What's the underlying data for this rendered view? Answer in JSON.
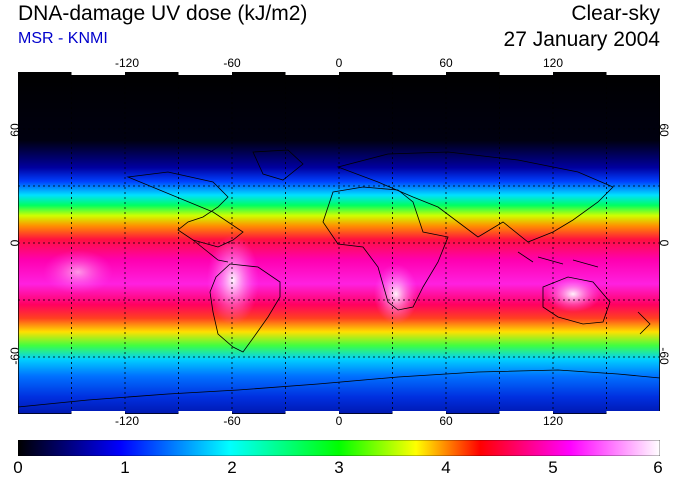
{
  "header": {
    "title": "DNA-damage UV dose (kJ/m2)",
    "subtitle": "MSR - KNMI",
    "condition": "Clear-sky",
    "date": "27 January 2004"
  },
  "map": {
    "lon_ticks": [
      "-120",
      "-60",
      "0",
      "60",
      "120"
    ],
    "lat_ticks_left": [
      "60",
      "0",
      "-60"
    ],
    "lat_ticks_right": [
      "60",
      "0",
      "-60"
    ],
    "lon_range": [
      -180,
      180
    ],
    "lat_range": [
      -90,
      90
    ],
    "gridlines_lon": [
      -150,
      -120,
      -90,
      -60,
      -30,
      0,
      30,
      60,
      90,
      120,
      150
    ],
    "gridlines_lat": [
      -60,
      -30,
      0,
      30,
      60
    ]
  },
  "colorbar": {
    "labels": [
      "0",
      "1",
      "2",
      "3",
      "4",
      "5",
      "6"
    ],
    "range": [
      0,
      6
    ],
    "colors": [
      "#000000",
      "#0000ff",
      "#00ffff",
      "#00ff00",
      "#ffff00",
      "#ff0000",
      "#ff00ff",
      "#ffffff"
    ]
  }
}
